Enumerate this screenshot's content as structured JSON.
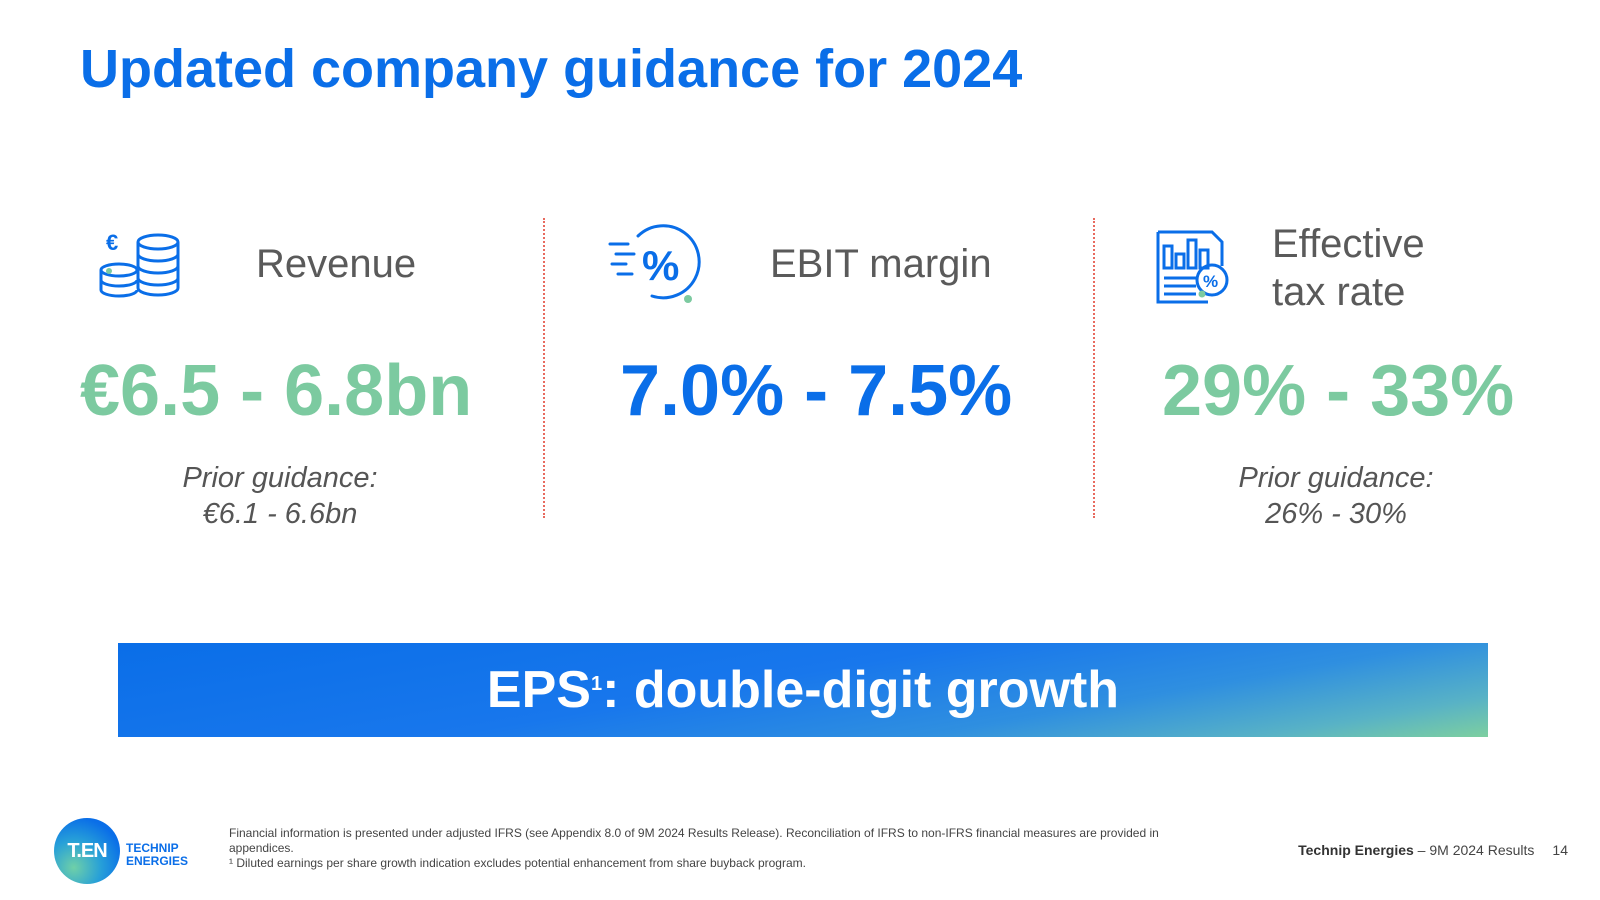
{
  "title": "Updated company guidance for 2024",
  "metrics": [
    {
      "icon": "coins-euro-icon",
      "label": "Revenue",
      "value": "€6.5 - 6.8bn",
      "prior_label": "Prior guidance:",
      "prior_value": "€6.1 - 6.6bn"
    },
    {
      "icon": "percent-icon",
      "label": "EBIT margin",
      "value": "7.0% - 7.5%"
    },
    {
      "icon": "tax-report-icon",
      "label_line1": "Effective",
      "label_line2": "tax rate",
      "value": "29% - 33%",
      "prior_label": "Prior guidance:",
      "prior_value": "26% - 30%"
    }
  ],
  "banner": {
    "main": "EPS",
    "sup": "1",
    "rest": ": double-digit growth"
  },
  "footer": {
    "logo_mark": "T.EN",
    "logo_line1": "TECHNIP",
    "logo_line2": "ENERGIES",
    "note1": "Financial information is presented under adjusted IFRS (see Appendix 8.0 of 9M 2024 Results Release). Reconciliation of IFRS to non-IFRS financial measures are provided in appendices.",
    "note2": "¹ Diluted earnings per share growth indication excludes potential enhancement from share buyback program.",
    "company": "Technip Energies",
    "report": " – 9M 2024 Results",
    "page": "14"
  },
  "colors": {
    "blue": "#0a6ee8",
    "green": "#7ccaa0",
    "divider": "#e86a5e"
  }
}
